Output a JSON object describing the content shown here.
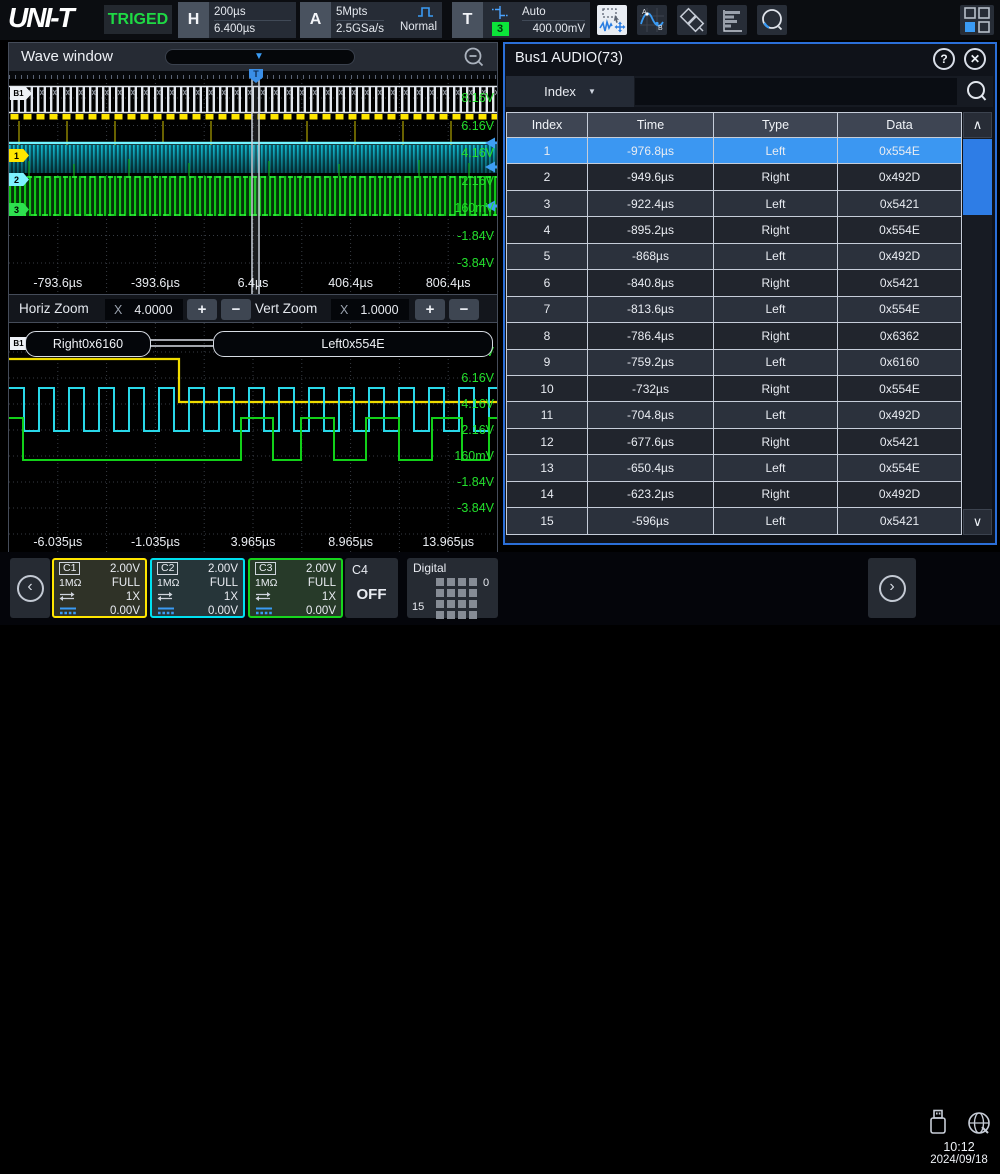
{
  "top_bar": {
    "logo": "UNI-T",
    "trigger_status": "TRIGED",
    "horizontal": {
      "label": "H",
      "scale": "200µs",
      "delay": "6.400µs"
    },
    "acquire": {
      "label": "A",
      "depth": "5Mpts",
      "rate": "2.5GSa/s",
      "mode": "Normal"
    },
    "trigger": {
      "label": "T",
      "source_badge": "3",
      "sweep": "Auto",
      "level": "400.00mV"
    }
  },
  "wave_window": {
    "title": "Wave window",
    "controls": {
      "horiz_label": "Horiz Zoom",
      "horiz_mult": "X",
      "horiz_value": "4.0000",
      "vert_label": "Vert Zoom",
      "vert_mult": "X",
      "vert_value": "1.0000",
      "plus": "+",
      "minus": "−"
    },
    "main": {
      "channel_tags": {
        "bus": "B1",
        "ch1": "1",
        "ch2": "2",
        "ch3": "3"
      },
      "voltage_labels": [
        "8.16V",
        "6.16V",
        "4.16V",
        "2.16V",
        "160mV",
        "-1.84V",
        "-3.84V"
      ],
      "time_labels": [
        "-793.6µs",
        "-393.6µs",
        "6.4µs",
        "406.4µs",
        "806.4µs"
      ]
    },
    "zoom": {
      "bus_tag": "B1",
      "bus_segments": [
        "Right0x6160",
        "Left0x554E"
      ],
      "voltage_labels": [
        "8.16V",
        "6.16V",
        "4.16V",
        "2.16V",
        "160mV",
        "-1.84V",
        "-3.84V"
      ],
      "time_labels": [
        "-6.035µs",
        "-1.035µs",
        "3.965µs",
        "8.965µs",
        "13.965µs"
      ]
    }
  },
  "decode_panel": {
    "title": "Bus1 AUDIO(73)",
    "filter": {
      "field": "Index",
      "query": ""
    },
    "columns": [
      "Index",
      "Time",
      "Type",
      "Data"
    ],
    "rows": [
      {
        "index": "1",
        "time": "-976.8µs",
        "type": "Left",
        "data": "0x554E",
        "selected": true
      },
      {
        "index": "2",
        "time": "-949.6µs",
        "type": "Right",
        "data": "0x492D"
      },
      {
        "index": "3",
        "time": "-922.4µs",
        "type": "Left",
        "data": "0x5421"
      },
      {
        "index": "4",
        "time": "-895.2µs",
        "type": "Right",
        "data": "0x554E"
      },
      {
        "index": "5",
        "time": "-868µs",
        "type": "Left",
        "data": "0x492D"
      },
      {
        "index": "6",
        "time": "-840.8µs",
        "type": "Right",
        "data": "0x5421"
      },
      {
        "index": "7",
        "time": "-813.6µs",
        "type": "Left",
        "data": "0x554E"
      },
      {
        "index": "8",
        "time": "-786.4µs",
        "type": "Right",
        "data": "0x6362"
      },
      {
        "index": "9",
        "time": "-759.2µs",
        "type": "Left",
        "data": "0x6160"
      },
      {
        "index": "10",
        "time": "-732µs",
        "type": "Right",
        "data": "0x554E"
      },
      {
        "index": "11",
        "time": "-704.8µs",
        "type": "Left",
        "data": "0x492D"
      },
      {
        "index": "12",
        "time": "-677.6µs",
        "type": "Right",
        "data": "0x5421"
      },
      {
        "index": "13",
        "time": "-650.4µs",
        "type": "Left",
        "data": "0x554E"
      },
      {
        "index": "14",
        "time": "-623.2µs",
        "type": "Right",
        "data": "0x492D"
      },
      {
        "index": "15",
        "time": "-596µs",
        "type": "Left",
        "data": "0x5421"
      }
    ]
  },
  "bottom_bar": {
    "channels": [
      {
        "name": "C1",
        "scale": "2.00V",
        "impedance": "1MΩ",
        "bandwidth": "FULL",
        "probe": "1X",
        "offset": "0.00V",
        "color": "#ffe600"
      },
      {
        "name": "C2",
        "scale": "2.00V",
        "impedance": "1MΩ",
        "bandwidth": "FULL",
        "probe": "1X",
        "offset": "0.00V",
        "color": "#00e0f0"
      },
      {
        "name": "C3",
        "scale": "2.00V",
        "impedance": "1MΩ",
        "bandwidth": "FULL",
        "probe": "1X",
        "offset": "0.00V",
        "color": "#17d51e"
      }
    ],
    "c4": {
      "name": "C4",
      "state": "OFF"
    },
    "digital": {
      "label": "Digital",
      "first": "0",
      "last": "15"
    },
    "clock": {
      "time": "10:12",
      "date": "2024/09/18"
    }
  },
  "icons": {
    "help": "?",
    "close": "✕",
    "scroll_up": "∧",
    "scroll_down": "∨",
    "chevron_left": "‹",
    "chevron_right": "›",
    "dropdown_caret": "▼",
    "position_caret": "▼",
    "trigger_flag": "T",
    "topbar_icons": [
      "acquire-pulse-icon",
      "trigger-type-icon",
      "wave-select-icon",
      "cursor-measure-icon",
      "xy-draw-icon",
      "result-list-icon",
      "search-icon",
      "display-layout-icon"
    ]
  },
  "colors": {
    "accent_blue": "#3a9bf4",
    "selected_row": "#3b97f2",
    "panel_border": "#2b6fd8",
    "ch1_yellow": "#ffe600",
    "ch2_cyan": "#00e0f0",
    "ch3_green": "#17d51e",
    "bus_white": "#e2e6ec",
    "trigged_green": "#1ed944",
    "scale_label_green": "#23e02c"
  }
}
